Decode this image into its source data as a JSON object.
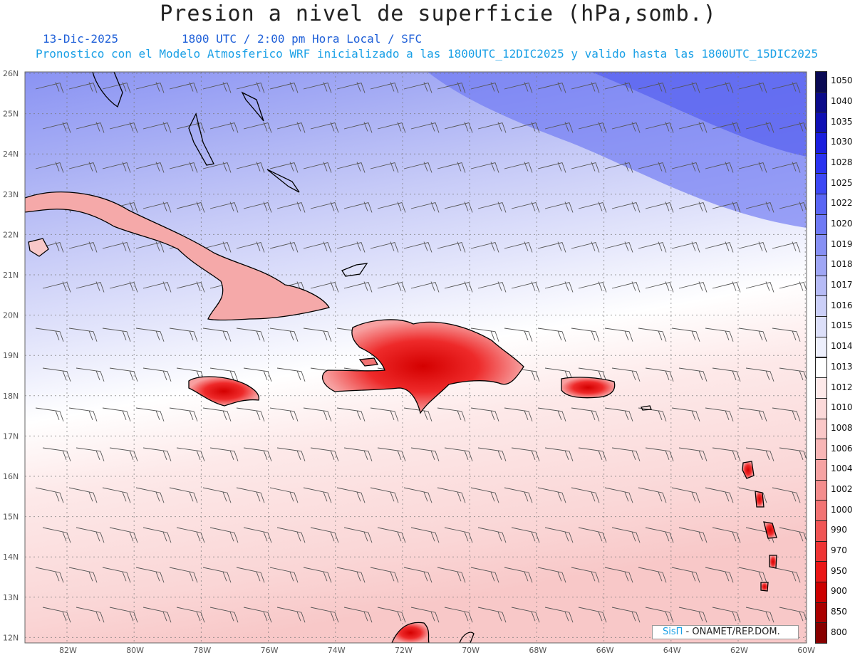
{
  "header": {
    "title": "Presion a nivel de superficie (hPa,somb.)",
    "date": "13-Dic-2025",
    "time_line": "1800 UTC / 2:00 pm Hora Local / SFC",
    "run_line": "Pronostico con el Modelo Atmosferico WRF inicializado a las 1800UTC_12DIC2025 y valido hasta las  1800UTC_15DIC2025"
  },
  "map": {
    "lat_labels": [
      "26N",
      "25N",
      "24N",
      "23N",
      "22N",
      "21N",
      "20N",
      "19N",
      "18N",
      "17N",
      "16N",
      "15N",
      "14N",
      "13N",
      "12N"
    ],
    "lon_labels": [
      "82W",
      "80W",
      "78W",
      "76W",
      "74W",
      "72W",
      "70W",
      "68W",
      "66W",
      "64W",
      "62W",
      "60W"
    ],
    "landmasses": [
      "Florida",
      "Bahamas",
      "Cuba",
      "Jamaica",
      "Haiti",
      "Republica Dominicana",
      "Puerto Rico",
      "Antillas Menores",
      "Venezuela"
    ]
  },
  "legend": {
    "levels": [
      "1050",
      "1040",
      "1035",
      "1030",
      "1028",
      "1025",
      "1022",
      "1020",
      "1019",
      "1018",
      "1017",
      "1016",
      "1015",
      "1014",
      "1013",
      "1012",
      "1010",
      "1008",
      "1006",
      "1004",
      "1002",
      "1000",
      "990",
      "970",
      "950",
      "900",
      "850",
      "800"
    ],
    "colors": [
      "#0a0a55",
      "#0b0b8a",
      "#0f10b4",
      "#1a1ede",
      "#2a33f0",
      "#3d48f5",
      "#5a66f4",
      "#6f7af5",
      "#8790f4",
      "#9fa6f5",
      "#b6bbf6",
      "#cbcff8",
      "#dcdff9",
      "#edeffc",
      "#ffffff",
      "#fde9e9",
      "#fbd9d9",
      "#fac8c8",
      "#f8b6b6",
      "#f6a3a3",
      "#f48d8d",
      "#f27373",
      "#f05555",
      "#ef3535",
      "#ea1616",
      "#cc0000",
      "#aa0000",
      "#880000"
    ]
  },
  "credit": {
    "brand": "SisΠ",
    "org": " - ONAMET/REP.DOM."
  }
}
